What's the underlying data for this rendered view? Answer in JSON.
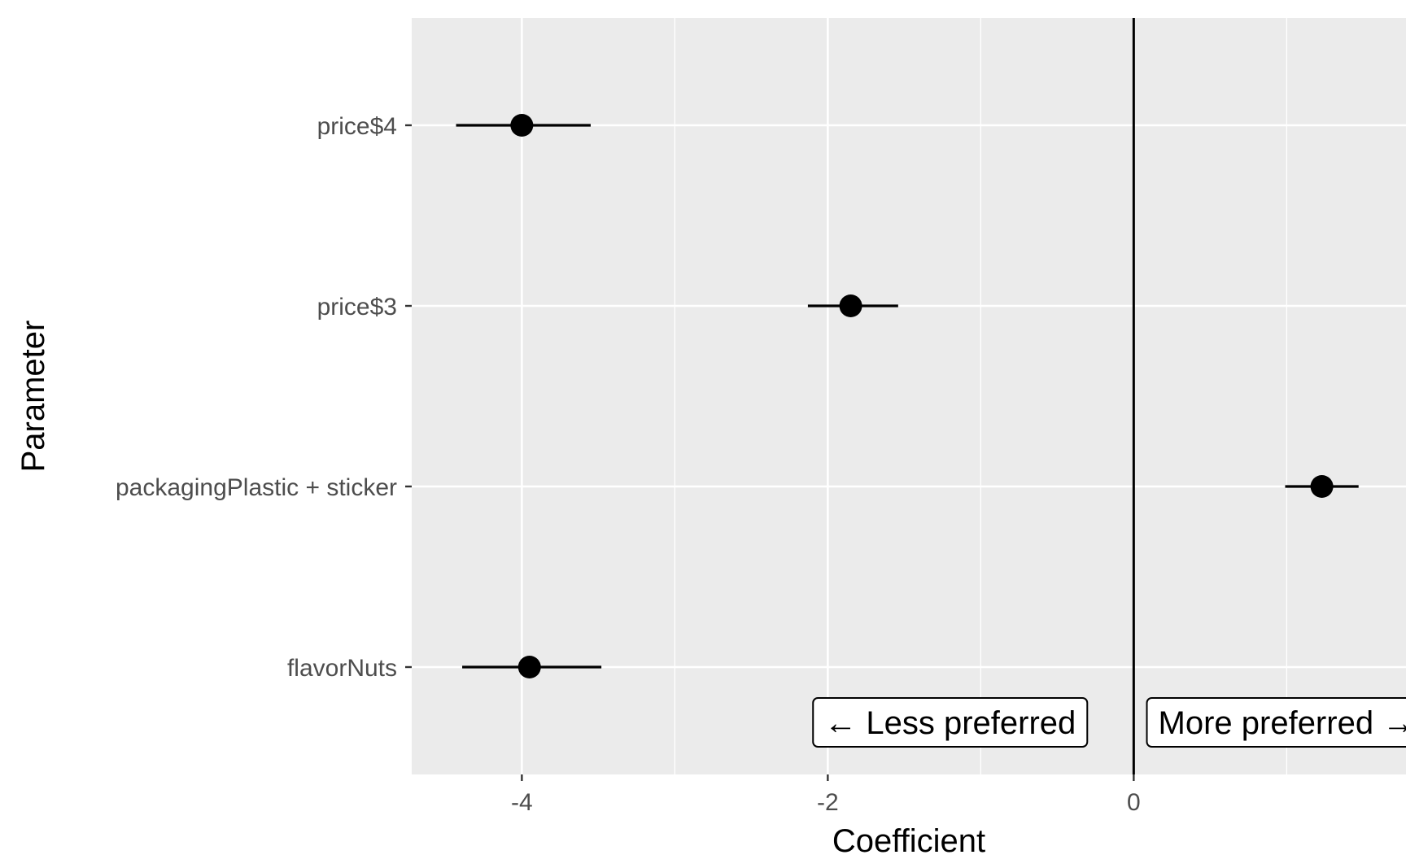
{
  "chart_data": {
    "type": "scatter",
    "xlabel": "Coefficient",
    "ylabel": "Parameter",
    "xlim": [
      -4.72,
      1.78
    ],
    "x_ticks": [
      -4,
      -2,
      0
    ],
    "x_gridlines_minor": [
      -3,
      -1,
      1
    ],
    "grid": true,
    "reference_line_x": 0,
    "categories": [
      "price$4",
      "price$3",
      "packagingPlastic + sticker",
      "flavorNuts"
    ],
    "estimates": [
      -4.0,
      -1.85,
      1.23,
      -3.95
    ],
    "ci_lower": [
      -4.43,
      -2.13,
      0.99,
      -4.39
    ],
    "ci_upper": [
      -3.55,
      -1.54,
      1.47,
      -3.48
    ],
    "annotations": [
      {
        "text": "← Less preferred",
        "x": -1.2
      },
      {
        "text": "More preferred →",
        "x": 1.0
      }
    ],
    "colors": {
      "panel": "#ebebeb",
      "grid": "#ffffff",
      "point": "#000000",
      "tick_text": "#4d4d4d"
    }
  }
}
